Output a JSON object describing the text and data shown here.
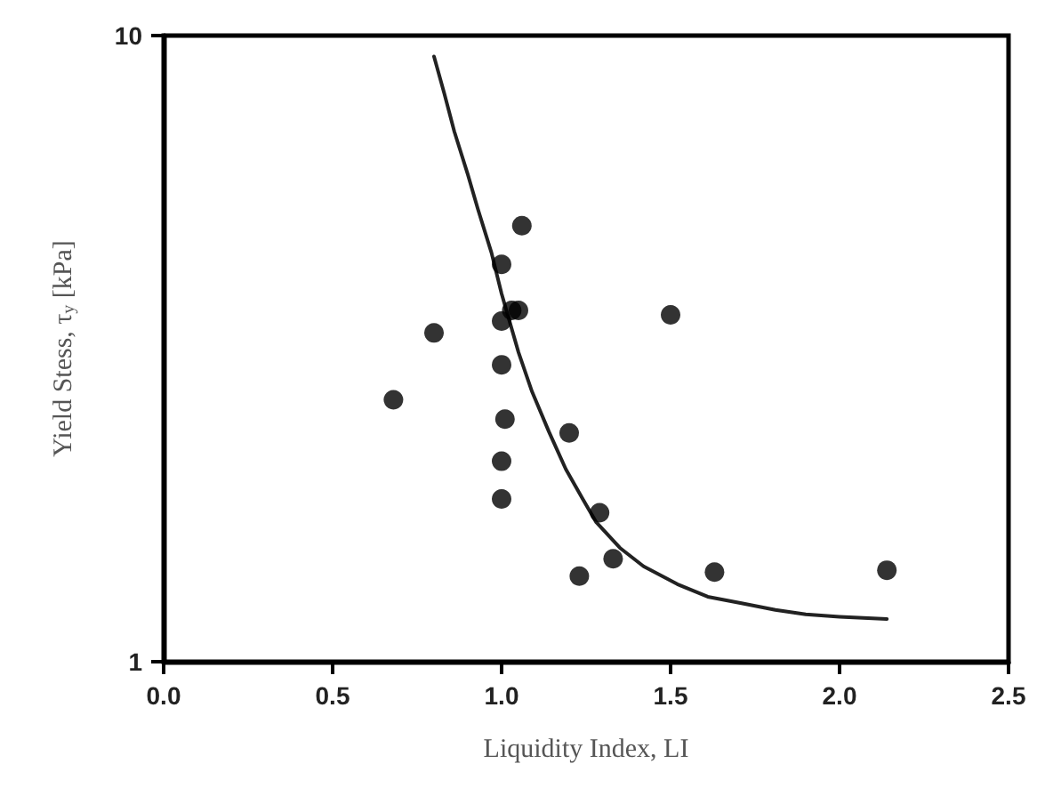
{
  "chart_data": {
    "type": "scatter",
    "xlabel": "Liquidity Index, LI",
    "ylabel": "Yield Stess, τ$_{y}$ [kPa]",
    "xlim": [
      0,
      2.5
    ],
    "xticks": [
      {
        "value": 0,
        "label": "0.0"
      },
      {
        "value": 0.5,
        "label": "0.5"
      },
      {
        "value": 1,
        "label": "1.0"
      },
      {
        "value": 1.5,
        "label": "1.5"
      },
      {
        "value": 2,
        "label": "2.0"
      },
      {
        "value": 2.5,
        "label": "2.5"
      }
    ],
    "ylim": [
      1,
      10
    ],
    "yticks": [
      1,
      10
    ],
    "log": "y",
    "grid": false,
    "marker": "circle",
    "series": [
      {
        "color": "#000000",
        "x": [
          0.68,
          0.8,
          1.0,
          1.06,
          1.03,
          1.05,
          1.0,
          1.0,
          1.01,
          1.0,
          1.0,
          1.2,
          1.5,
          1.29,
          1.33,
          1.23,
          1.63,
          2.14
        ],
        "values": [
          2.62,
          3.35,
          4.31,
          4.97,
          3.64,
          3.64,
          3.5,
          2.98,
          2.44,
          2.09,
          1.82,
          2.32,
          3.58,
          1.73,
          1.46,
          1.37,
          1.39,
          1.4
        ]
      },
      {
        "type": "line",
        "color": "#222222",
        "marker": "none",
        "line_style": "solid",
        "x": [
          0.8,
          0.83,
          0.86,
          0.9,
          0.93,
          0.97,
          1.0,
          1.05,
          1.09,
          1.14,
          1.19,
          1.24,
          1.28,
          1.35,
          1.42,
          1.52,
          1.61,
          1.71,
          1.81,
          1.9,
          2.0,
          2.14
        ],
        "values": [
          9.26,
          8.1,
          7.03,
          6.0,
          5.28,
          4.5,
          3.87,
          3.12,
          2.7,
          2.33,
          2.03,
          1.82,
          1.67,
          1.52,
          1.42,
          1.33,
          1.27,
          1.24,
          1.21,
          1.19,
          1.18,
          1.17
        ]
      }
    ]
  }
}
